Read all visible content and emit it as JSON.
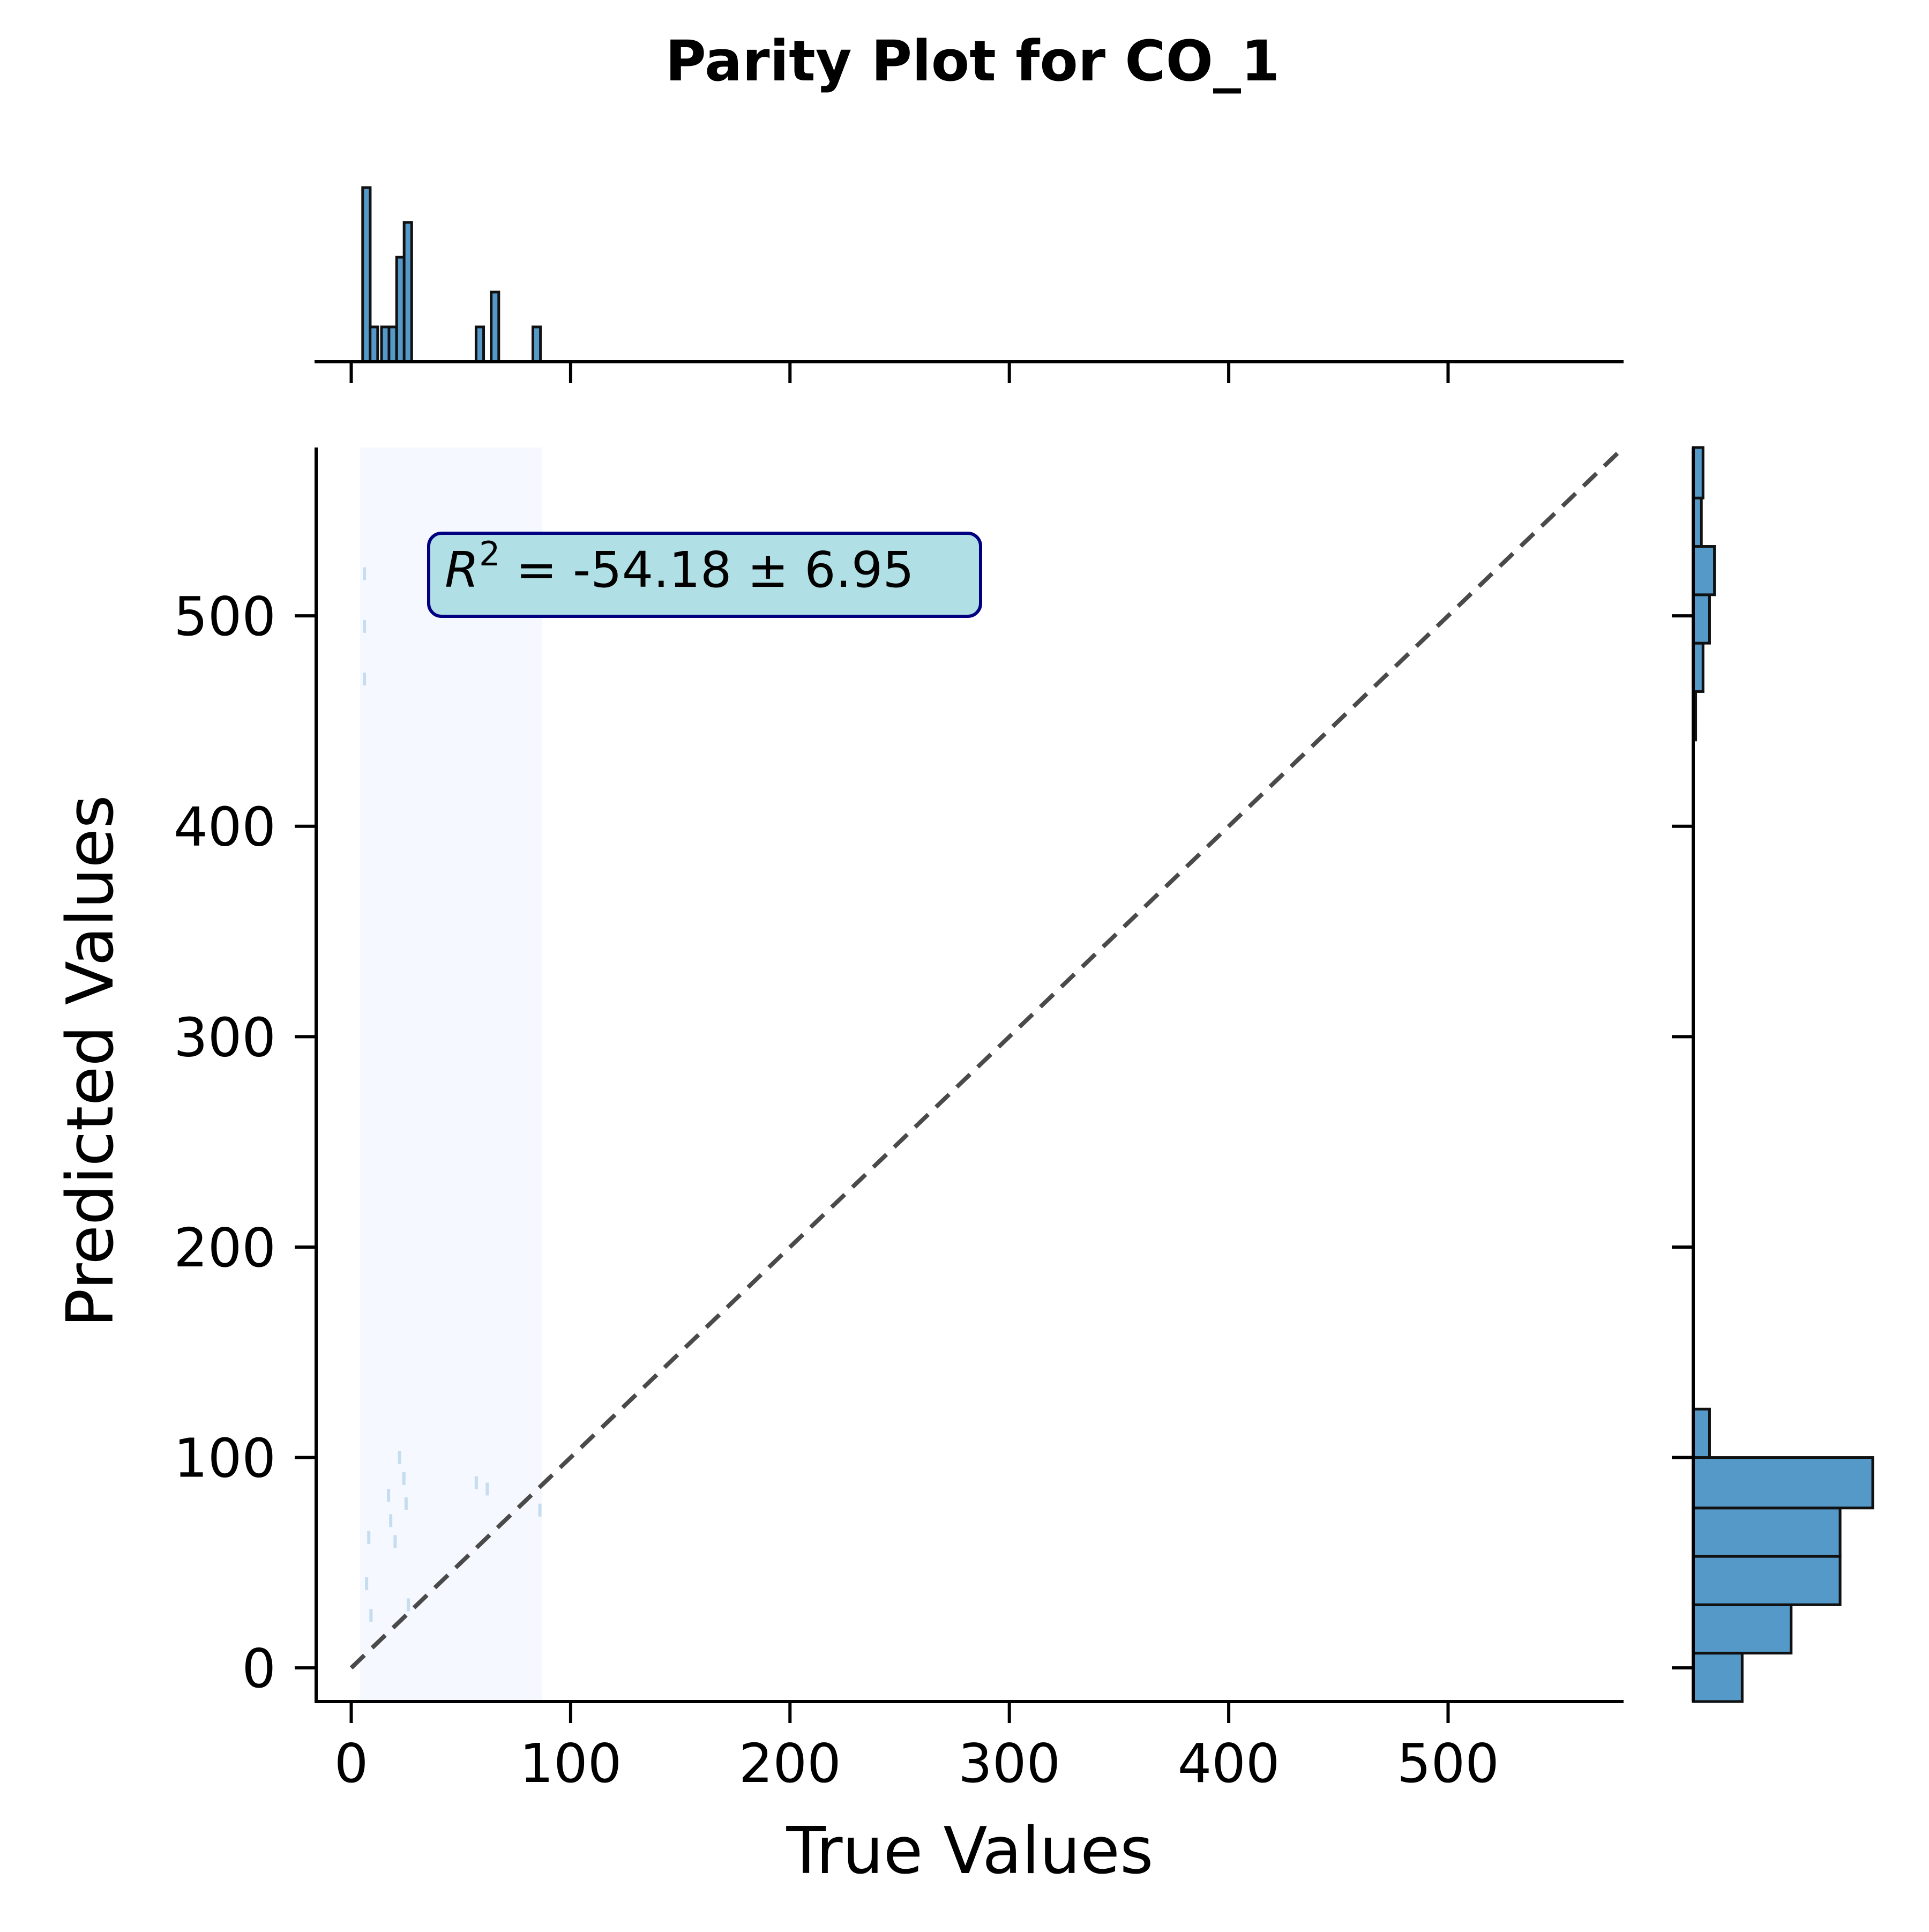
{
  "chart_data": {
    "type": "scatter",
    "title": "Parity Plot for CO_1",
    "xlabel": "True Values",
    "ylabel": "Predicted Values",
    "xlim": [
      -16,
      580
    ],
    "ylim": [
      -16,
      580
    ],
    "xticks": [
      0,
      100,
      200,
      300,
      400,
      500
    ],
    "yticks": [
      0,
      100,
      200,
      300,
      400,
      500
    ],
    "reference_line": {
      "x": [
        0,
        580
      ],
      "y": [
        0,
        580
      ],
      "style": "dashed",
      "color": "#4a4a4a"
    },
    "annotation": {
      "r2_prefix": "R",
      "r2_exp": "2",
      "text": " = -54.18 ± 6.95"
    },
    "density_region": {
      "x": [
        4,
        87
      ],
      "y": [
        -16,
        580
      ],
      "color": "#f5f9ff"
    },
    "faint_points": [
      {
        "x": 6,
        "y": 520
      },
      {
        "x": 6,
        "y": 495
      },
      {
        "x": 6,
        "y": 470
      },
      {
        "x": 7,
        "y": 40
      },
      {
        "x": 8,
        "y": 62
      },
      {
        "x": 9,
        "y": 25
      },
      {
        "x": 17,
        "y": 82
      },
      {
        "x": 18,
        "y": 70
      },
      {
        "x": 20,
        "y": 60
      },
      {
        "x": 22,
        "y": 100
      },
      {
        "x": 24,
        "y": 90
      },
      {
        "x": 25,
        "y": 78
      },
      {
        "x": 26,
        "y": 30
      },
      {
        "x": 57,
        "y": 88
      },
      {
        "x": 62,
        "y": 85
      },
      {
        "x": 86,
        "y": 75
      }
    ],
    "top_histogram": {
      "bin_width": 3.45,
      "bars": [
        {
          "x0": 5.2,
          "count": 10
        },
        {
          "x0": 8.6,
          "count": 2
        },
        {
          "x0": 13.8,
          "count": 2
        },
        {
          "x0": 17.2,
          "count": 2
        },
        {
          "x0": 20.7,
          "count": 6
        },
        {
          "x0": 24.1,
          "count": 8
        },
        {
          "x0": 56.9,
          "count": 2
        },
        {
          "x0": 63.8,
          "count": 4
        },
        {
          "x0": 82.8,
          "count": 2
        }
      ],
      "max_count": 10
    },
    "right_histogram": {
      "bins": [
        {
          "y0": -16,
          "y1": 7,
          "count": 3
        },
        {
          "y0": 7,
          "y1": 30,
          "count": 6
        },
        {
          "y0": 30,
          "y1": 53,
          "count": 9
        },
        {
          "y0": 53,
          "y1": 76,
          "count": 9
        },
        {
          "y0": 76,
          "y1": 100,
          "count": 11
        },
        {
          "y0": 100,
          "y1": 123,
          "count": 1
        },
        {
          "y0": 441,
          "y1": 464,
          "count": 0.15
        },
        {
          "y0": 464,
          "y1": 487,
          "count": 0.6
        },
        {
          "y0": 487,
          "y1": 510,
          "count": 1
        },
        {
          "y0": 510,
          "y1": 533,
          "count": 1.3
        },
        {
          "y0": 533,
          "y1": 556,
          "count": 0.5
        },
        {
          "y0": 556,
          "y1": 580,
          "count": 0.6
        }
      ],
      "max_count": 11
    },
    "colors": {
      "bar_fill": "#5499c8",
      "bar_edge": "#111111",
      "annotation_fill": "#b0e0e6",
      "annotation_edge": "#000080",
      "faint_point": "#c6dcef"
    },
    "grid": false
  }
}
